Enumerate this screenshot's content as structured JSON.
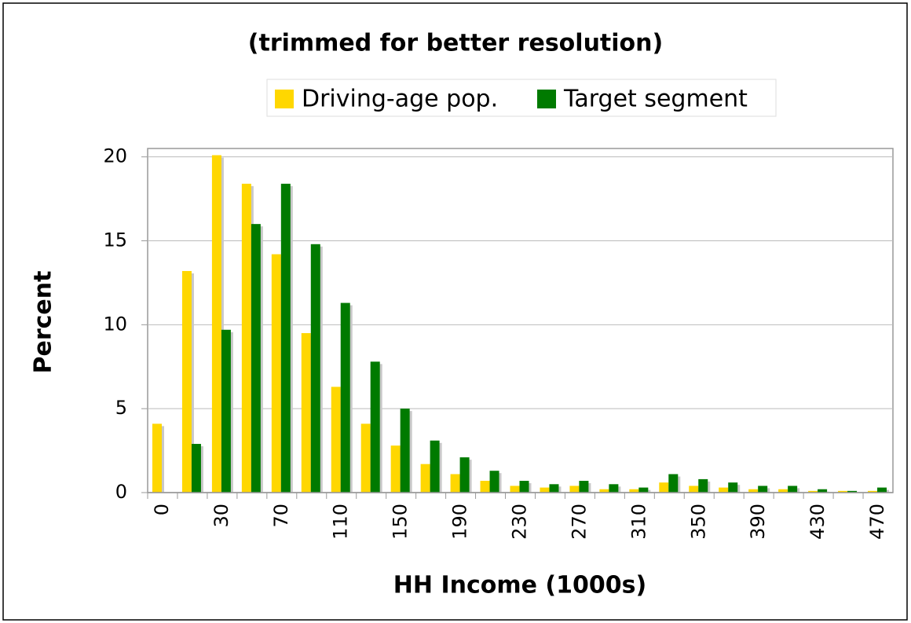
{
  "chart_data": {
    "type": "bar",
    "title": "(trimmed for better resolution)",
    "xlabel": "HH Income (1000s)",
    "ylabel": "Percent",
    "categories": [
      "0",
      null,
      "30",
      null,
      "70",
      null,
      "110",
      null,
      "150",
      null,
      "190",
      null,
      "230",
      null,
      "270",
      null,
      "310",
      null,
      "350",
      null,
      "390",
      null,
      "430",
      null,
      "470"
    ],
    "series": [
      {
        "name": "Driving-age pop.",
        "color": "#ffd700",
        "values": [
          4.1,
          13.2,
          20.1,
          18.4,
          14.2,
          9.5,
          6.3,
          4.1,
          2.8,
          1.7,
          1.1,
          0.7,
          0.4,
          0.3,
          0.4,
          0.2,
          0.2,
          0.6,
          0.4,
          0.3,
          0.2,
          0.2,
          0.1,
          0.1,
          0.1
        ]
      },
      {
        "name": "Target segment",
        "color": "#007a00",
        "values": [
          0,
          2.9,
          9.7,
          16,
          18.4,
          14.8,
          11.3,
          7.8,
          5.0,
          3.1,
          2.1,
          1.3,
          0.7,
          0.5,
          0.7,
          0.5,
          0.3,
          1.1,
          0.8,
          0.6,
          0.4,
          0.4,
          0.2,
          0.1,
          0.3
        ]
      }
    ],
    "ylim": [
      0,
      20.5
    ],
    "yticks": [
      0,
      5,
      10,
      15,
      20
    ],
    "grid": true
  }
}
